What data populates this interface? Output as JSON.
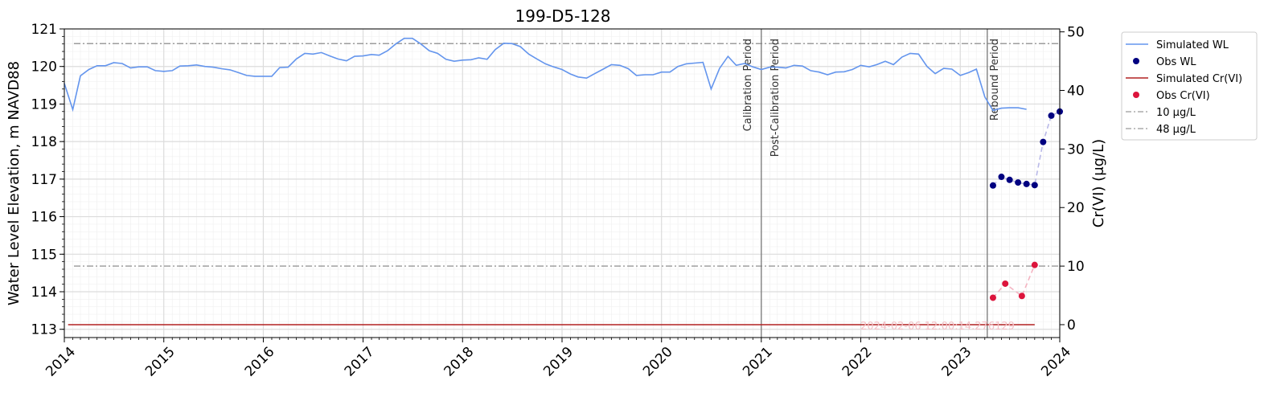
{
  "chart_data": {
    "type": "line",
    "title": "199-D5-128",
    "xlabel": "",
    "ylabel": "Water Level Elevation, m NAVD88",
    "y2label": "Cr(VI) (μg/L)",
    "xlim": [
      "2014-01-01",
      "2024-01-01"
    ],
    "ylim": [
      112.78,
      121.0
    ],
    "y2lim": [
      -2.2,
      50.5
    ],
    "x_ticks": [
      "2014",
      "2015",
      "2016",
      "2017",
      "2018",
      "2019",
      "2020",
      "2021",
      "2022",
      "2023",
      "2024"
    ],
    "y_ticks": [
      "113",
      "114",
      "115",
      "116",
      "117",
      "118",
      "119",
      "120",
      "121"
    ],
    "y2_ticks": [
      "0",
      "10",
      "20",
      "30",
      "40",
      "50"
    ],
    "grid": true,
    "legend_position": "outside-right",
    "legend": [
      {
        "label": "Simulated WL",
        "kind": "line",
        "color": "#6495ed"
      },
      {
        "label": "Obs WL",
        "kind": "marker",
        "color": "#000080"
      },
      {
        "label": "Simulated Cr(VI)",
        "kind": "line",
        "color": "#b22222"
      },
      {
        "label": "Obs Cr(VI)",
        "kind": "marker",
        "color": "#dc143c"
      },
      {
        "label": "10 μg/L",
        "kind": "dashdot",
        "color": "#808080"
      },
      {
        "label": "48 μg/L",
        "kind": "dashdot",
        "color": "#808080"
      }
    ],
    "periods": [
      {
        "label": "Calibration Period",
        "date": "2021-01-01"
      },
      {
        "label": "Post-Calibration Period",
        "date": "2021-01-01"
      },
      {
        "label": "Rebound Period",
        "date": "2023-04-10"
      }
    ],
    "thresholds": [
      {
        "label": "10 μg/L",
        "value": 10
      },
      {
        "label": "48 μg/L",
        "value": 48
      }
    ],
    "watermark": "2024-02-06 12:00:14.276129",
    "series": [
      {
        "name": "Simulated WL",
        "axis": "left",
        "color": "#6495ed",
        "x": [
          "2014-01-01",
          "2014-02-01",
          "2014-03-01",
          "2014-04-01",
          "2014-05-01",
          "2014-06-01",
          "2014-07-01",
          "2014-08-01",
          "2014-09-01",
          "2014-10-01",
          "2014-11-01",
          "2014-12-01",
          "2015-01-01",
          "2015-02-01",
          "2015-03-01",
          "2015-04-01",
          "2015-05-01",
          "2015-06-01",
          "2015-07-01",
          "2015-08-01",
          "2015-09-01",
          "2015-10-01",
          "2015-11-01",
          "2015-12-01",
          "2016-01-01",
          "2016-02-01",
          "2016-03-01",
          "2016-04-01",
          "2016-05-01",
          "2016-06-01",
          "2016-07-01",
          "2016-08-01",
          "2016-09-01",
          "2016-10-01",
          "2016-11-01",
          "2016-12-01",
          "2017-01-01",
          "2017-02-01",
          "2017-03-01",
          "2017-04-01",
          "2017-05-01",
          "2017-06-01",
          "2017-07-01",
          "2017-08-01",
          "2017-09-01",
          "2017-10-01",
          "2017-11-01",
          "2017-12-01",
          "2018-01-01",
          "2018-02-01",
          "2018-03-01",
          "2018-04-01",
          "2018-05-01",
          "2018-06-01",
          "2018-07-01",
          "2018-08-01",
          "2018-09-01",
          "2018-10-01",
          "2018-11-01",
          "2018-12-01",
          "2019-01-01",
          "2019-02-01",
          "2019-03-01",
          "2019-04-01",
          "2019-05-01",
          "2019-06-01",
          "2019-07-01",
          "2019-08-01",
          "2019-09-01",
          "2019-10-01",
          "2019-11-01",
          "2019-12-01",
          "2020-01-01",
          "2020-02-01",
          "2020-03-01",
          "2020-04-01",
          "2020-05-01",
          "2020-06-01",
          "2020-07-01",
          "2020-08-01",
          "2020-09-01",
          "2020-10-01",
          "2020-11-01",
          "2020-12-01",
          "2021-01-01",
          "2021-02-01",
          "2021-03-01",
          "2021-04-01",
          "2021-05-01",
          "2021-06-01",
          "2021-07-01",
          "2021-08-01",
          "2021-09-01",
          "2021-10-01",
          "2021-11-01",
          "2021-12-01",
          "2022-01-01",
          "2022-02-01",
          "2022-03-01",
          "2022-04-01",
          "2022-05-01",
          "2022-06-01",
          "2022-07-01",
          "2022-08-01",
          "2022-09-01",
          "2022-10-01",
          "2022-11-01",
          "2022-12-01",
          "2023-01-01",
          "2023-02-01",
          "2023-03-01",
          "2023-04-01",
          "2023-05-01",
          "2023-06-01",
          "2023-07-01",
          "2023-08-01",
          "2023-09-01"
        ],
        "y": [
          119.55,
          118.85,
          119.75,
          119.92,
          120.02,
          120.02,
          120.1,
          120.08,
          119.96,
          119.99,
          119.99,
          119.89,
          119.87,
          119.89,
          120.01,
          120.02,
          120.04,
          120.0,
          119.98,
          119.94,
          119.91,
          119.84,
          119.76,
          119.74,
          119.74,
          119.74,
          119.97,
          119.98,
          120.2,
          120.35,
          120.33,
          120.37,
          120.28,
          120.2,
          120.15,
          120.27,
          120.28,
          120.32,
          120.3,
          120.42,
          120.6,
          120.75,
          120.75,
          120.6,
          120.42,
          120.35,
          120.19,
          120.14,
          120.17,
          120.18,
          120.23,
          120.19,
          120.45,
          120.62,
          120.61,
          120.53,
          120.33,
          120.2,
          120.07,
          119.99,
          119.92,
          119.8,
          119.72,
          119.69,
          119.81,
          119.93,
          120.05,
          120.03,
          119.94,
          119.76,
          119.78,
          119.78,
          119.85,
          119.85,
          120.0,
          120.07,
          120.09,
          120.11,
          119.4,
          119.95,
          120.27,
          120.03,
          120.08,
          119.99,
          119.92,
          119.98,
          119.98,
          119.96,
          120.03,
          120.01,
          119.89,
          119.85,
          119.78,
          119.85,
          119.86,
          119.92,
          120.03,
          119.99,
          120.05,
          120.14,
          120.05,
          120.25,
          120.35,
          120.33,
          120.0,
          119.81,
          119.95,
          119.93,
          119.76,
          119.84,
          119.93,
          119.19,
          118.83,
          118.89,
          118.9,
          118.9,
          118.86
        ]
      },
      {
        "name": "Obs WL",
        "axis": "left",
        "color": "#000080",
        "x": [
          "2023-05-01",
          "2023-06-01",
          "2023-07-01",
          "2023-08-01",
          "2023-09-01",
          "2023-10-01",
          "2023-11-01",
          "2023-12-01",
          "2024-01-01"
        ],
        "y": [
          116.83,
          117.06,
          116.98,
          116.91,
          116.87,
          116.84,
          117.99,
          118.69,
          118.8
        ]
      },
      {
        "name": "Simulated Cr(VI)",
        "axis": "right",
        "color": "#b22222",
        "x": [
          "2014-01-15",
          "2023-10-01"
        ],
        "y": [
          0,
          0
        ]
      },
      {
        "name": "Obs Cr(VI)",
        "axis": "right",
        "color": "#dc143c",
        "x": [
          "2023-05-01",
          "2023-06-15",
          "2023-08-15",
          "2023-10-01"
        ],
        "y": [
          4.6,
          7.0,
          4.9,
          10.2
        ]
      }
    ]
  }
}
